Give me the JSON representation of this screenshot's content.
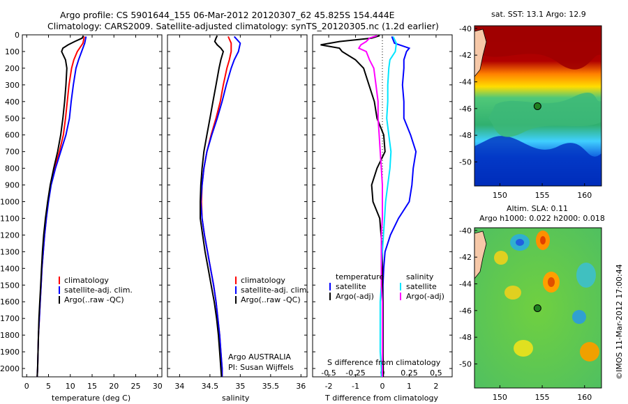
{
  "header": {
    "line1": "Argo profile: CS 5901644_155 06-Mar-2012 20120307_62 45.825S 154.444E",
    "line2": "Climatology: CARS2009. Satellite-adjusted climatology: synTS_20120305.nc (1.2d earlier)"
  },
  "colors": {
    "climatology": "#ff0000",
    "satellite": "#0000ff",
    "argo": "#000000",
    "sal_satellite": "#00e5ff",
    "sal_argo": "#ff00ff"
  },
  "chart_data": [
    {
      "type": "line",
      "name": "temperature-panel",
      "xlabel": "temperature (deg C)",
      "ylabel": "",
      "xlim": [
        -1,
        31
      ],
      "ylim": [
        2050,
        0
      ],
      "xticks": [
        0,
        5,
        10,
        15,
        20,
        25,
        30
      ],
      "yticks": [
        0,
        100,
        200,
        300,
        400,
        500,
        600,
        700,
        800,
        900,
        1000,
        1100,
        1200,
        1300,
        1400,
        1500,
        1600,
        1700,
        1800,
        1900,
        2000
      ],
      "legend": [
        "climatology",
        "satellite-adj. clim.",
        "Argo(..raw -QC)"
      ],
      "legend_position": "lower-right",
      "series": [
        {
          "name": "climatology",
          "color": "#ff0000",
          "depth": [
            10,
            50,
            100,
            150,
            200,
            300,
            400,
            500,
            600,
            700,
            800,
            900,
            1000,
            1100,
            1200,
            1300,
            1400,
            1500,
            1600,
            1700,
            1800,
            1900,
            2000,
            2050
          ],
          "values": [
            13.2,
            12.9,
            11.6,
            10.8,
            10.3,
            9.7,
            9.3,
            8.9,
            8.4,
            7.5,
            6.4,
            5.5,
            4.9,
            4.5,
            4.1,
            3.8,
            3.5,
            3.3,
            3.1,
            2.9,
            2.7,
            2.6,
            2.5,
            2.4
          ]
        },
        {
          "name": "satellite-adj. clim.",
          "color": "#0000ff",
          "depth": [
            10,
            50,
            100,
            150,
            200,
            300,
            400,
            500,
            600,
            700,
            800,
            900,
            1000,
            1100,
            1200,
            1300,
            1400,
            1500,
            1600,
            1700,
            1800,
            1900,
            2000,
            2050
          ],
          "values": [
            13.6,
            13.3,
            12.6,
            11.9,
            11.3,
            10.7,
            10.2,
            9.8,
            9.0,
            7.8,
            6.6,
            5.6,
            5.0,
            4.5,
            4.1,
            3.8,
            3.5,
            3.3,
            3.1,
            2.9,
            2.7,
            2.6,
            2.5,
            2.4
          ]
        },
        {
          "name": "Argo(..raw -QC)",
          "color": "#000000",
          "depth": [
            5,
            20,
            40,
            60,
            80,
            100,
            150,
            200,
            300,
            400,
            500,
            600,
            700,
            800,
            900,
            1000,
            1100,
            1200,
            1300,
            1400,
            1500,
            1600,
            1700,
            1800,
            1900,
            2000,
            2050
          ],
          "values": [
            13.0,
            12.7,
            11.0,
            9.5,
            8.3,
            8.0,
            8.9,
            9.2,
            9.0,
            8.7,
            8.3,
            7.8,
            7.1,
            6.2,
            5.4,
            4.8,
            4.3,
            3.9,
            3.6,
            3.4,
            3.2,
            3.0,
            2.8,
            2.7,
            2.6,
            2.5,
            2.4
          ]
        }
      ]
    },
    {
      "type": "line",
      "name": "salinity-panel",
      "xlabel": "salinity",
      "xlim": [
        33.8,
        36.1
      ],
      "ylim": [
        2050,
        0
      ],
      "xticks": [
        34,
        34.5,
        35,
        35.5,
        36
      ],
      "xticklabels": [
        "34",
        "34.5",
        "35",
        "35.5",
        "36"
      ],
      "legend": [
        "climatology",
        "satellite-adj. clim.",
        "Argo(..raw -QC)"
      ],
      "legend_position": "lower-right",
      "annotation": [
        "Argo AUSTRALIA",
        "PI: Susan Wijffels"
      ],
      "series": [
        {
          "name": "climatology",
          "color": "#ff0000",
          "depth": [
            10,
            50,
            100,
            150,
            200,
            300,
            400,
            500,
            600,
            700,
            800,
            900,
            1000,
            1100,
            1200,
            1300,
            1400,
            1500,
            1600,
            1700,
            1800,
            1900,
            2000,
            2050
          ],
          "values": [
            34.8,
            34.85,
            34.85,
            34.82,
            34.78,
            34.72,
            34.67,
            34.6,
            34.52,
            34.45,
            34.4,
            34.37,
            34.36,
            34.37,
            34.41,
            34.46,
            34.51,
            34.56,
            34.6,
            34.63,
            34.66,
            34.68,
            34.7,
            34.7
          ]
        },
        {
          "name": "satellite-adj. clim.",
          "color": "#0000ff",
          "depth": [
            10,
            50,
            100,
            150,
            200,
            300,
            400,
            500,
            600,
            700,
            800,
            900,
            1000,
            1100,
            1200,
            1300,
            1400,
            1500,
            1600,
            1700,
            1800,
            1900,
            2000,
            2050
          ],
          "values": [
            34.9,
            35.0,
            34.97,
            34.9,
            34.85,
            34.77,
            34.7,
            34.62,
            34.53,
            34.45,
            34.4,
            34.37,
            34.35,
            34.37,
            34.41,
            34.46,
            34.51,
            34.56,
            34.6,
            34.63,
            34.66,
            34.68,
            34.7,
            34.7
          ]
        },
        {
          "name": "Argo(..raw -QC)",
          "color": "#000000",
          "depth": [
            5,
            20,
            40,
            60,
            80,
            100,
            150,
            200,
            300,
            400,
            500,
            600,
            700,
            800,
            900,
            1000,
            1100,
            1200,
            1300,
            1400,
            1500,
            1600,
            1700,
            1800,
            1900,
            2000,
            2050
          ],
          "values": [
            34.62,
            34.6,
            34.58,
            34.62,
            34.68,
            34.72,
            34.68,
            34.65,
            34.6,
            34.55,
            34.5,
            34.45,
            34.4,
            34.37,
            34.35,
            34.34,
            34.34,
            34.38,
            34.42,
            34.47,
            34.52,
            34.57,
            34.61,
            34.64,
            34.66,
            34.68,
            34.69
          ]
        }
      ]
    },
    {
      "type": "line",
      "name": "difference-panel",
      "xlabel": "T difference from climatology",
      "xlabel_top": "S difference from climatology",
      "xlim": [
        -2.6,
        2.6
      ],
      "ylim": [
        2050,
        0
      ],
      "xticks": [
        -2,
        -1,
        0,
        1,
        2
      ],
      "xticks_top": [
        -0.5,
        -0.25,
        0,
        0.25,
        0.5
      ],
      "xticklabels_top": [
        "-0.5",
        "-0.25",
        "0",
        "0.25",
        "0.5"
      ],
      "legend_temperature_title": "temperature",
      "legend_salinity_title": "salinity",
      "legend_temperature": [
        "satellite",
        "Argo(-adj)"
      ],
      "legend_salinity": [
        "satellite",
        "Argo(-adj)"
      ],
      "legend_position": "lower",
      "series": [
        {
          "name": "T satellite",
          "color": "#0000ff",
          "depth": [
            10,
            50,
            80,
            100,
            150,
            200,
            300,
            400,
            500,
            600,
            700,
            800,
            900,
            1000,
            1100,
            1200,
            1300,
            1400,
            1500,
            1600,
            1700,
            1800,
            1900,
            2000,
            2050
          ],
          "values": [
            0.35,
            0.45,
            1.0,
            0.9,
            0.8,
            0.8,
            0.75,
            0.8,
            0.8,
            1.05,
            1.25,
            1.15,
            1.1,
            1.0,
            0.6,
            0.3,
            0.1,
            0.05,
            0.02,
            0.02,
            0.02,
            0.02,
            0.02,
            0.0,
            0.0
          ]
        },
        {
          "name": "T Argo(-adj)",
          "color": "#000000",
          "depth": [
            5,
            20,
            40,
            60,
            80,
            100,
            150,
            200,
            300,
            400,
            500,
            600,
            700,
            800,
            900,
            1000,
            1100,
            1200,
            1300,
            1400,
            1500,
            1600,
            1700,
            1800,
            1900,
            2000,
            2050
          ],
          "values": [
            -0.1,
            -0.4,
            -1.6,
            -2.3,
            -1.6,
            -1.5,
            -1.0,
            -0.7,
            -0.5,
            -0.3,
            -0.2,
            0.05,
            0.1,
            -0.2,
            -0.4,
            -0.35,
            -0.1,
            -0.05,
            0.0,
            0.0,
            0.0,
            0.02,
            0.02,
            0.02,
            0.02,
            0.03,
            0.03
          ]
        },
        {
          "name": "S satellite",
          "color": "#00e5ff",
          "depth": [
            10,
            50,
            100,
            150,
            200,
            300,
            400,
            500,
            600,
            700,
            800,
            900,
            1000,
            1100,
            1200,
            1300,
            1400,
            1500,
            1600,
            1700,
            1800,
            1900,
            2000,
            2050
          ],
          "values": [
            0.1,
            0.13,
            0.12,
            0.07,
            0.06,
            0.05,
            0.05,
            0.04,
            0.06,
            0.08,
            0.07,
            0.05,
            0.03,
            0.02,
            0.01,
            0.0,
            -0.01,
            -0.01,
            -0.02,
            -0.02,
            -0.02,
            -0.02,
            -0.01,
            -0.01
          ]
        },
        {
          "name": "S Argo(-adj)",
          "color": "#ff00ff",
          "depth": [
            5,
            20,
            40,
            60,
            80,
            100,
            150,
            200,
            300,
            400,
            500,
            600,
            700,
            800,
            900,
            1000,
            1100,
            1200,
            1300,
            1400,
            1500,
            1600,
            1700,
            1800,
            1900,
            2000,
            2050
          ],
          "values": [
            -0.05,
            -0.12,
            -0.15,
            -0.2,
            -0.22,
            -0.15,
            -0.12,
            -0.08,
            -0.06,
            -0.04,
            -0.04,
            -0.03,
            -0.02,
            -0.01,
            0.0,
            0.0,
            0.0,
            -0.01,
            -0.01,
            -0.01,
            -0.01,
            0.0,
            0.0,
            0.0,
            0.0,
            0.0,
            0.0
          ]
        }
      ]
    },
    {
      "type": "heatmap",
      "name": "sst-map",
      "title": "sat. SST: 13.1  Argo: 12.9",
      "xticks": [
        150,
        155,
        160
      ],
      "yticks": [
        -40,
        -42,
        -44,
        -46,
        -48,
        -50
      ],
      "xlim": [
        147,
        162
      ],
      "ylim": [
        -51.8,
        -39.8
      ],
      "marker": {
        "lon": 154.444,
        "lat": -45.825
      }
    },
    {
      "type": "heatmap",
      "name": "sla-map",
      "title": "Altim. SLA: 0.11",
      "subtitle": "Argo h1000: 0.022 h2000: 0.018",
      "xticks": [
        150,
        155,
        160
      ],
      "yticks": [
        -40,
        -42,
        -44,
        -46,
        -48,
        -50
      ],
      "xlim": [
        147,
        162
      ],
      "ylim": [
        -51.8,
        -39.8
      ],
      "marker": {
        "lon": 154.444,
        "lat": -45.825
      },
      "side_label": "©IMOS 11-Mar-2012 17:00:44"
    }
  ]
}
